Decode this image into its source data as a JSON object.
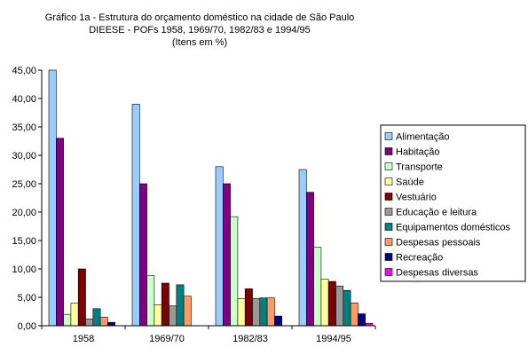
{
  "chart_data": {
    "type": "bar",
    "title": "Gráfico 1a - Estrutura do orçamento doméstico na cidade de São Paulo",
    "subtitle": "DIEESE - POFs 1958, 1969/70, 1982/83 e 1994/95",
    "note": "(Itens em %)",
    "xlabel": "",
    "ylabel": "",
    "ylim": [
      0,
      45
    ],
    "ytick_labels": [
      "0,00",
      "5,00",
      "10,00",
      "15,00",
      "20,00",
      "25,00",
      "30,00",
      "35,00",
      "40,00",
      "45,00"
    ],
    "grid": false,
    "legend_position": "right",
    "categories": [
      "1958",
      "1969/70",
      "1982/83",
      "1994/95"
    ],
    "series": [
      {
        "name": "Alimentação",
        "color": "#99CCFF",
        "values": [
          45.0,
          39.0,
          28.0,
          27.5
        ]
      },
      {
        "name": "Habitação",
        "color": "#800080",
        "values": [
          33.0,
          25.0,
          25.0,
          23.5
        ]
      },
      {
        "name": "Transporte",
        "color": "#CCFFCC",
        "values": [
          2.0,
          8.8,
          19.2,
          13.8
        ]
      },
      {
        "name": "Saúde",
        "color": "#FFFF99",
        "values": [
          4.0,
          3.7,
          4.8,
          8.2
        ]
      },
      {
        "name": "Vestuário",
        "color": "#800000",
        "values": [
          10.0,
          7.5,
          6.5,
          7.8
        ]
      },
      {
        "name": "Educação e leitura",
        "color": "#999999",
        "values": [
          1.2,
          3.5,
          4.8,
          7.0
        ]
      },
      {
        "name": "Equipamentos domésticos",
        "color": "#008080",
        "values": [
          3.0,
          7.2,
          4.9,
          6.2
        ]
      },
      {
        "name": "Despesas pessoais",
        "color": "#FF9966",
        "values": [
          1.5,
          5.2,
          4.9,
          4.0
        ]
      },
      {
        "name": "Recreação",
        "color": "#000080",
        "values": [
          0.6,
          0.0,
          1.7,
          2.1
        ]
      },
      {
        "name": "Despesas diversas",
        "color": "#FF00FF",
        "values": [
          0.0,
          0.0,
          0.0,
          0.4
        ]
      }
    ]
  }
}
